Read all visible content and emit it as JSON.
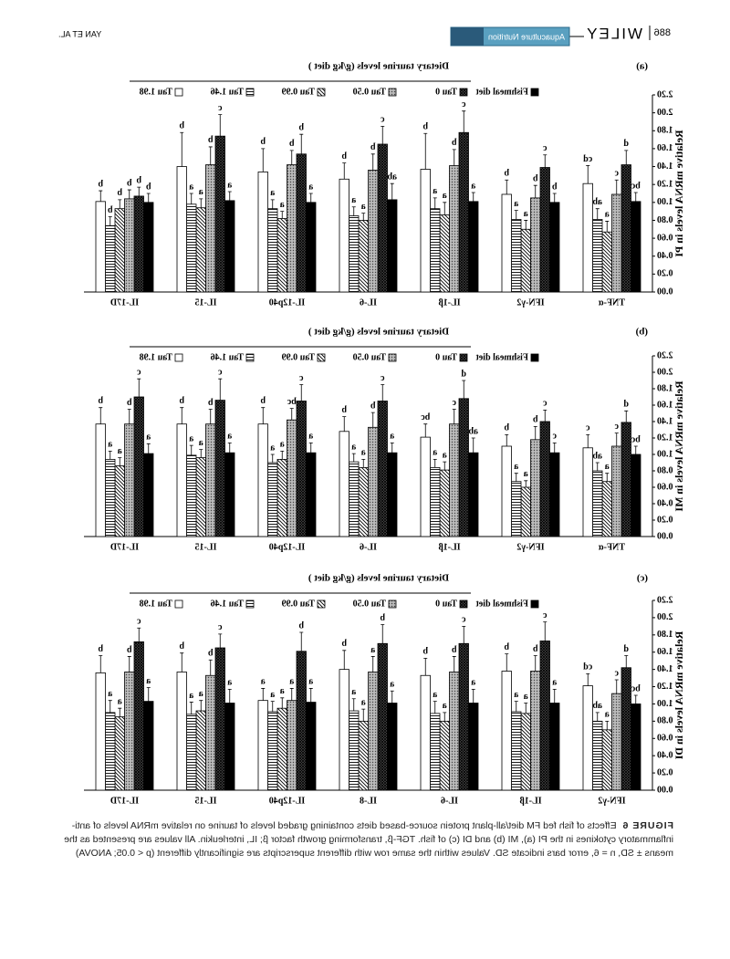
{
  "header": {
    "page": "886",
    "brand": "WILEY",
    "journal": "Aquaculture Nutrition",
    "authors": "YAN ET AL."
  },
  "chart_data": [
    {
      "type": "bar",
      "panel": "(a)",
      "ylabel": "Relative mRNA levels in PI",
      "legend_title": "Dietary taurine levels (g/kg diet )",
      "categories": [
        "TNF-α",
        "IFN-γ2",
        "IL-1β",
        "IL-6",
        "IL-12p40",
        "IL-15",
        "IL-17D"
      ],
      "ylim": [
        0,
        2.2
      ],
      "yticks": [
        {
          "value": 0,
          "label": "0.00"
        },
        {
          "value": 0.2,
          "label": "0.20"
        },
        {
          "value": 0.4,
          "label": "0.40"
        },
        {
          "value": 0.6,
          "label": "0.60"
        },
        {
          "value": 0.8,
          "label": "0.80"
        },
        {
          "value": 1,
          "label": "1.00"
        },
        {
          "value": 1.2,
          "label": "1.20"
        },
        {
          "value": 1.4,
          "label": "1.40"
        },
        {
          "value": 1.6,
          "label": "1.60"
        },
        {
          "value": 1.8,
          "label": "1.80"
        },
        {
          "value": 2,
          "label": "2.00"
        },
        {
          "value": 2.2,
          "label": "2.20"
        }
      ],
      "series": [
        {
          "name": "Fishmeal diet",
          "color": "#000000",
          "pattern": "solid",
          "values": [
            1.01,
            1.0,
            1.01,
            1.03,
            1.0,
            1.02,
            1.0
          ],
          "errors": [
            0.1,
            0.1,
            0.1,
            0.18,
            0.1,
            0.1,
            0.1
          ],
          "letters": [
            "bc",
            "b",
            "a",
            "ab",
            "a",
            "a",
            "b"
          ]
        },
        {
          "name": "Tau 0",
          "color": "#222222",
          "pattern": "dense",
          "values": [
            1.42,
            1.39,
            1.78,
            1.65,
            1.54,
            1.74,
            1.07
          ],
          "errors": [
            0.16,
            0.14,
            0.24,
            0.2,
            0.22,
            0.24,
            0.1
          ],
          "letters": [
            "d",
            "c",
            "c",
            "c",
            "b",
            "c",
            "b"
          ]
        },
        {
          "name": "Tau 0.50",
          "color": "#888888",
          "pattern": "dots",
          "values": [
            1.09,
            1.05,
            1.41,
            1.36,
            1.42,
            1.42,
            1.04
          ],
          "errors": [
            0.16,
            0.14,
            0.18,
            0.18,
            0.16,
            0.2,
            0.1
          ],
          "letters": [
            "c",
            "b",
            "b",
            "b",
            "b",
            "b",
            "b"
          ]
        },
        {
          "name": "Tau 0.99",
          "color": "#000000",
          "pattern": "diagonal",
          "values": [
            0.67,
            0.7,
            0.86,
            0.8,
            0.82,
            0.94,
            0.93
          ],
          "errors": [
            0.12,
            0.1,
            0.14,
            0.08,
            0.08,
            0.1,
            0.1
          ],
          "letters": [
            "a",
            "a",
            "a",
            "a",
            "a",
            "a",
            "b"
          ]
        },
        {
          "name": "Tau 1.46",
          "color": "#000000",
          "pattern": "horizontal",
          "values": [
            0.81,
            0.81,
            0.93,
            0.85,
            0.93,
            0.98,
            0.74
          ],
          "errors": [
            0.12,
            0.1,
            0.12,
            0.1,
            0.1,
            0.12,
            0.1
          ],
          "letters": [
            "ab",
            "a",
            "a",
            "a",
            "a",
            "a",
            "b"
          ]
        },
        {
          "name": "Tau 1.98",
          "color": "#ffffff",
          "pattern": "none",
          "values": [
            1.21,
            1.09,
            1.37,
            1.26,
            1.34,
            1.4,
            1.01
          ],
          "errors": [
            0.2,
            0.16,
            0.4,
            0.18,
            0.26,
            0.38,
            0.12
          ],
          "letters": [
            "cd",
            "b",
            "b",
            "b",
            "b",
            "b",
            "b"
          ]
        }
      ]
    },
    {
      "type": "bar",
      "panel": "(b)",
      "ylabel": "Relative mRNA levels in MI",
      "legend_title": "Dietary taurine levels (g/kg diet )",
      "categories": [
        "TNF-α",
        "IFN-γ2",
        "IL-1β",
        "IL-6",
        "IL-12p40",
        "IL-15",
        "IL-17D"
      ],
      "ylim": [
        0,
        2.2
      ],
      "yticks": [
        {
          "value": 0,
          "label": "0.00"
        },
        {
          "value": 0.2,
          "label": "0.20"
        },
        {
          "value": 0.4,
          "label": "0.40"
        },
        {
          "value": 0.6,
          "label": "0.60"
        },
        {
          "value": 0.8,
          "label": "0.80"
        },
        {
          "value": 1,
          "label": "1.00"
        },
        {
          "value": 1.2,
          "label": "1.20"
        },
        {
          "value": 1.4,
          "label": "1.40"
        },
        {
          "value": 1.6,
          "label": "1.60"
        },
        {
          "value": 1.8,
          "label": "1.80"
        },
        {
          "value": 2,
          "label": "2.00"
        },
        {
          "value": 2.2,
          "label": "2.20"
        }
      ],
      "series": [
        {
          "name": "Fishmeal diet",
          "color": "#000000",
          "pattern": "solid",
          "values": [
            1.0,
            1.02,
            1.02,
            1.02,
            1.02,
            1.02,
            1.01
          ],
          "errors": [
            0.1,
            0.12,
            0.18,
            0.12,
            0.12,
            0.12,
            0.12
          ],
          "letters": [
            "bc",
            "c",
            "ab",
            "a",
            "a",
            "a",
            "a"
          ]
        },
        {
          "name": "Tau 0",
          "color": "#222222",
          "pattern": "dense",
          "values": [
            1.39,
            1.4,
            1.68,
            1.65,
            1.65,
            1.66,
            1.7
          ],
          "errors": [
            0.14,
            0.14,
            0.22,
            0.2,
            0.2,
            0.26,
            0.22
          ],
          "letters": [
            "d",
            "c",
            "d",
            "c",
            "c",
            "c",
            "c"
          ]
        },
        {
          "name": "Tau 0.50",
          "color": "#888888",
          "pattern": "dots",
          "values": [
            1.1,
            1.18,
            1.37,
            1.33,
            1.42,
            1.37,
            1.37
          ],
          "errors": [
            0.16,
            0.16,
            0.18,
            0.18,
            0.14,
            0.18,
            0.18
          ],
          "letters": [
            "c",
            "b",
            "c",
            "b",
            "bc",
            "b",
            "b"
          ]
        },
        {
          "name": "Tau 0.99",
          "color": "#000000",
          "pattern": "diagonal",
          "values": [
            0.67,
            0.6,
            0.81,
            0.84,
            0.94,
            0.96,
            0.86
          ],
          "errors": [
            0.1,
            0.08,
            0.1,
            0.1,
            0.1,
            0.1,
            0.1
          ],
          "letters": [
            "a",
            "a",
            "a",
            "a",
            "a",
            "a",
            "a"
          ]
        },
        {
          "name": "Tau 1.46",
          "color": "#000000",
          "pattern": "horizontal",
          "values": [
            0.8,
            0.67,
            0.84,
            0.91,
            0.9,
            0.99,
            0.94
          ],
          "errors": [
            0.1,
            0.1,
            0.1,
            0.1,
            0.1,
            0.12,
            0.1
          ],
          "letters": [
            "ab",
            "a",
            "a",
            "a",
            "a",
            "a",
            "a"
          ]
        },
        {
          "name": "Tau 1.98",
          "color": "#ffffff",
          "pattern": "none",
          "values": [
            1.08,
            1.1,
            1.21,
            1.28,
            1.37,
            1.37,
            1.37
          ],
          "errors": [
            0.16,
            0.14,
            0.16,
            0.18,
            0.2,
            0.2,
            0.2
          ],
          "letters": [
            "c",
            "b",
            "bc",
            "b",
            "b",
            "b",
            "b"
          ]
        }
      ]
    },
    {
      "type": "bar",
      "panel": "(c)",
      "ylabel": "Relative mRNA levels in DI",
      "legend_title": "Dietary taurine levels (g/kg diet )",
      "categories": [
        "IFN-γ2",
        "IL-1β",
        "IL-6",
        "IL-8",
        "IL-12p40",
        "IL-15",
        "IL-17D"
      ],
      "ylim": [
        0,
        2.2
      ],
      "yticks": [
        {
          "value": 0,
          "label": "0.00"
        },
        {
          "value": 0.2,
          "label": "0.20"
        },
        {
          "value": 0.4,
          "label": "0.40"
        },
        {
          "value": 0.6,
          "label": "0.60"
        },
        {
          "value": 0.8,
          "label": "0.80"
        },
        {
          "value": 1,
          "label": "1.00"
        },
        {
          "value": 1.2,
          "label": "1.20"
        },
        {
          "value": 1.4,
          "label": "1.40"
        },
        {
          "value": 1.6,
          "label": "1.60"
        },
        {
          "value": 1.8,
          "label": "1.80"
        },
        {
          "value": 2,
          "label": "2.00"
        },
        {
          "value": 2.2,
          "label": "2.20"
        }
      ],
      "series": [
        {
          "name": "Fishmeal diet",
          "color": "#000000",
          "pattern": "solid",
          "values": [
            1.0,
            1.01,
            1.01,
            1.01,
            1.02,
            1.01,
            1.03
          ],
          "errors": [
            0.1,
            0.16,
            0.16,
            0.14,
            0.16,
            0.16,
            0.16
          ],
          "letters": [
            "bc",
            "a",
            "a",
            "a",
            "a",
            "a",
            "a"
          ]
        },
        {
          "name": "Tau 0",
          "color": "#222222",
          "pattern": "dense",
          "values": [
            1.42,
            1.73,
            1.7,
            1.7,
            1.61,
            1.65,
            1.72
          ],
          "errors": [
            0.14,
            0.22,
            0.2,
            0.22,
            0.22,
            0.16,
            0.16
          ],
          "letters": [
            "d",
            "c",
            "c",
            "b",
            "b",
            "c",
            "c"
          ]
        },
        {
          "name": "Tau 0.50",
          "color": "#888888",
          "pattern": "dots",
          "values": [
            1.12,
            1.38,
            1.37,
            1.37,
            1.04,
            1.33,
            1.37
          ],
          "errors": [
            0.16,
            0.18,
            0.18,
            0.18,
            0.14,
            0.18,
            0.18
          ],
          "letters": [
            "c",
            "b",
            "b",
            "a",
            "a",
            "b",
            "b"
          ]
        },
        {
          "name": "Tau 0.99",
          "color": "#000000",
          "pattern": "diagonal",
          "values": [
            0.7,
            0.89,
            0.8,
            0.8,
            0.95,
            0.92,
            0.85
          ],
          "errors": [
            0.1,
            0.12,
            0.1,
            0.14,
            0.12,
            0.12,
            0.1
          ],
          "letters": [
            "a",
            "a",
            "a",
            "a",
            "a",
            "a",
            "a"
          ]
        },
        {
          "name": "Tau 1.46",
          "color": "#000000",
          "pattern": "horizontal",
          "values": [
            0.8,
            0.91,
            0.89,
            0.92,
            0.91,
            0.88,
            0.9
          ],
          "errors": [
            0.1,
            0.12,
            0.14,
            0.14,
            0.12,
            0.14,
            0.14
          ],
          "letters": [
            "ab",
            "a",
            "a",
            "a",
            "a",
            "a",
            "a"
          ]
        },
        {
          "name": "Tau 1.98",
          "color": "#ffffff",
          "pattern": "none",
          "values": [
            1.21,
            1.38,
            1.33,
            1.4,
            1.04,
            1.37,
            1.36
          ],
          "errors": [
            0.14,
            0.2,
            0.2,
            0.22,
            0.14,
            0.22,
            0.2
          ],
          "letters": [
            "cd",
            "b",
            "b",
            "b",
            "a",
            "b",
            "b"
          ]
        }
      ]
    }
  ],
  "caption": {
    "label": "FIGURE 6",
    "text": "Effects of fish fed FM diet/all-plant protein source-based diets containing graded levels of taurine on relative mRNA levels of anti-inflammatory cytokines in the PI (a), MI (b) and DI (c) of fish. TGF-β, transforming growth factor β; IL, interleukin. All values are presented as the means ± SD, n = 6, error bars indicate SD. Values within the same row with different superscripts are significantly different (p < 0.05; ANOVA)"
  }
}
